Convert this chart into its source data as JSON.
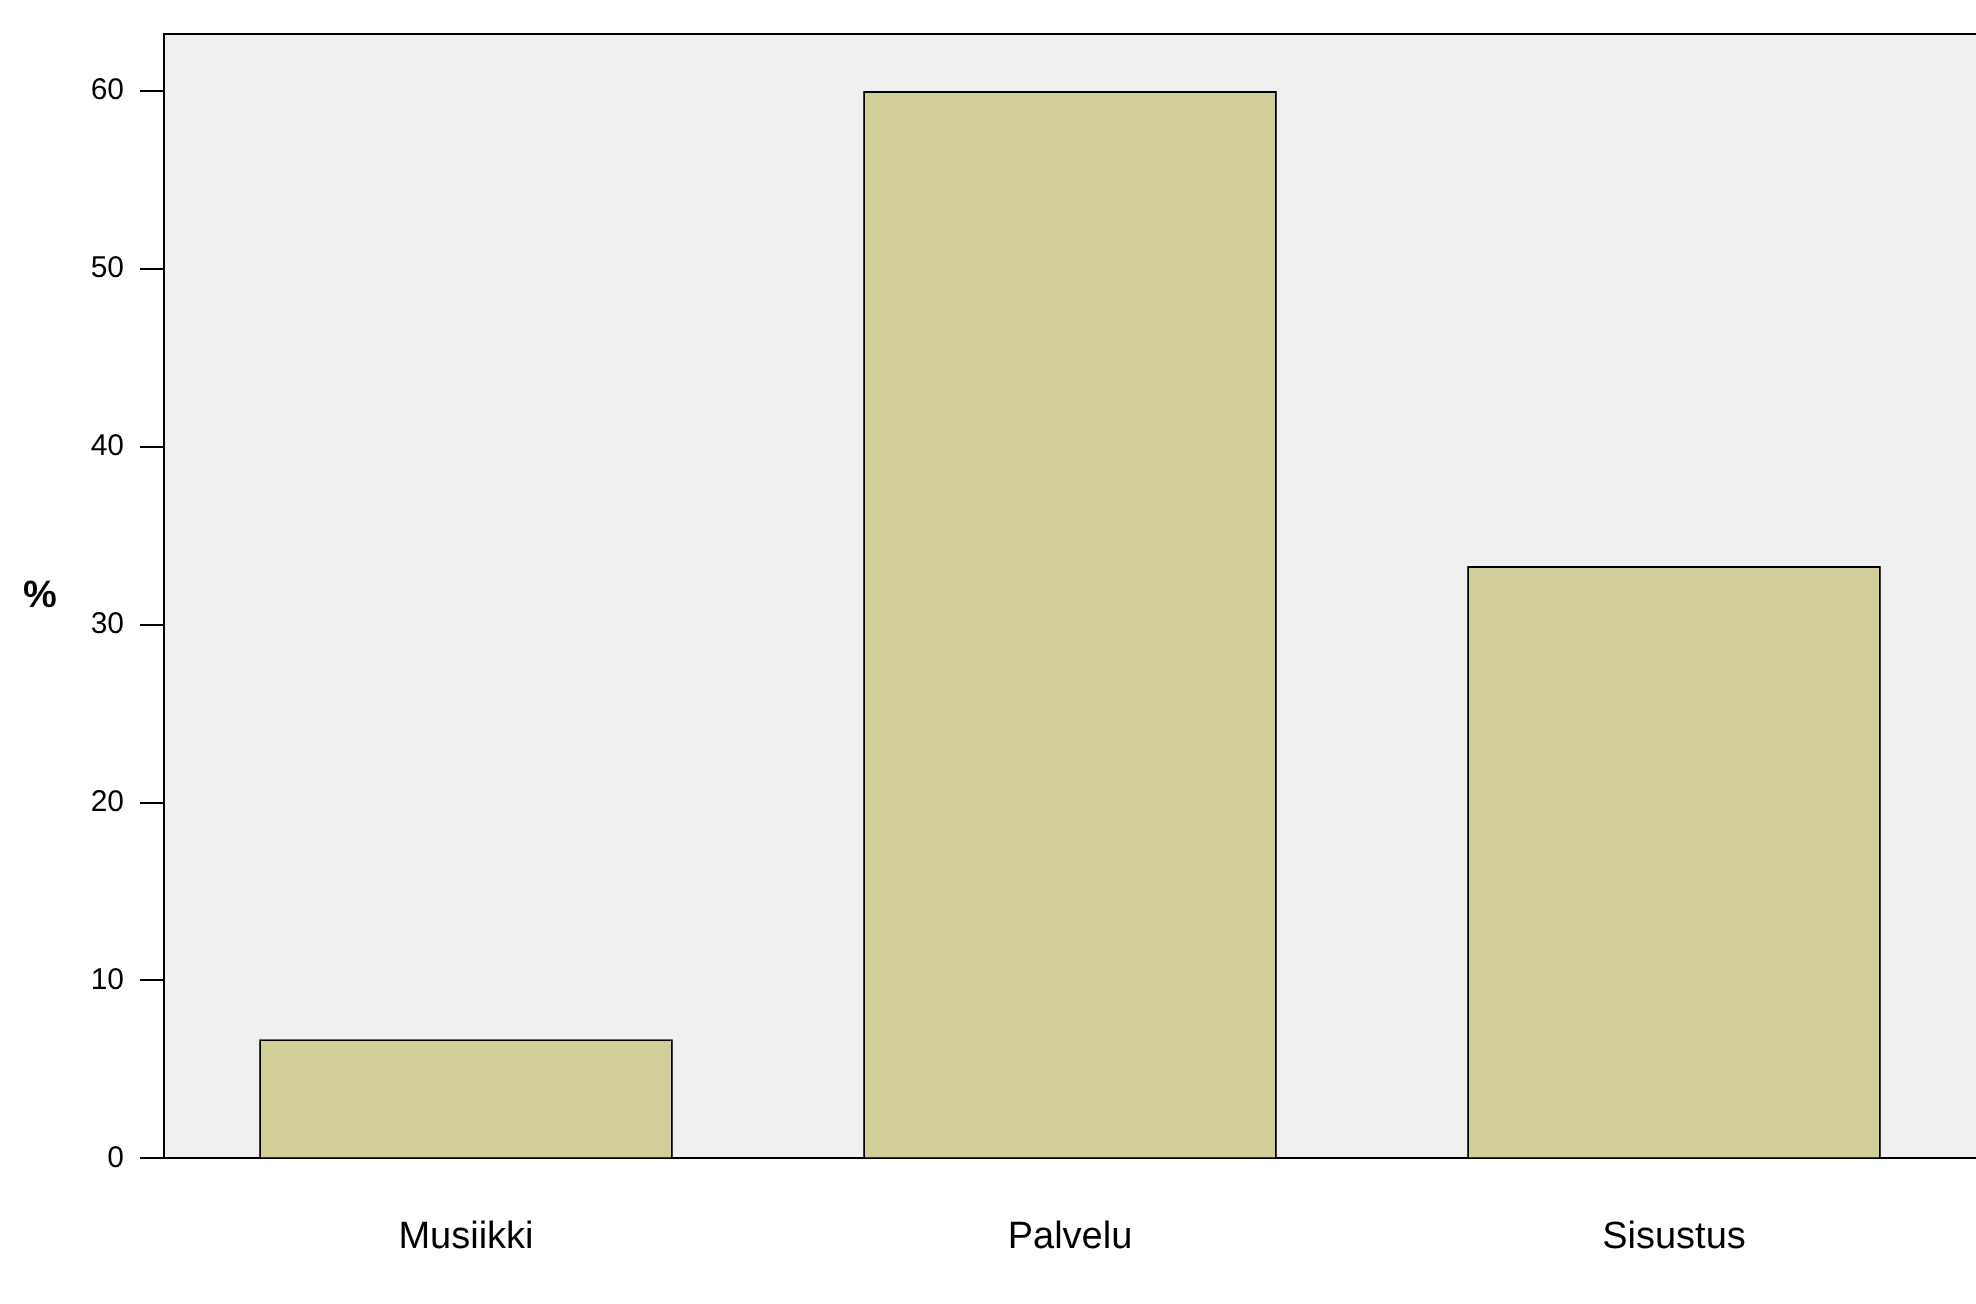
{
  "chart_data": {
    "type": "bar",
    "ylabel": "%",
    "categories": [
      "Musiikki",
      "Palvelu",
      "Sisustus"
    ],
    "values": [
      6.7,
      60,
      33.3
    ],
    "color": "#d3cf99",
    "ylim": [
      0,
      63.2
    ],
    "yticks": [
      0,
      10,
      20,
      30,
      40,
      50,
      60
    ],
    "grid": false
  }
}
